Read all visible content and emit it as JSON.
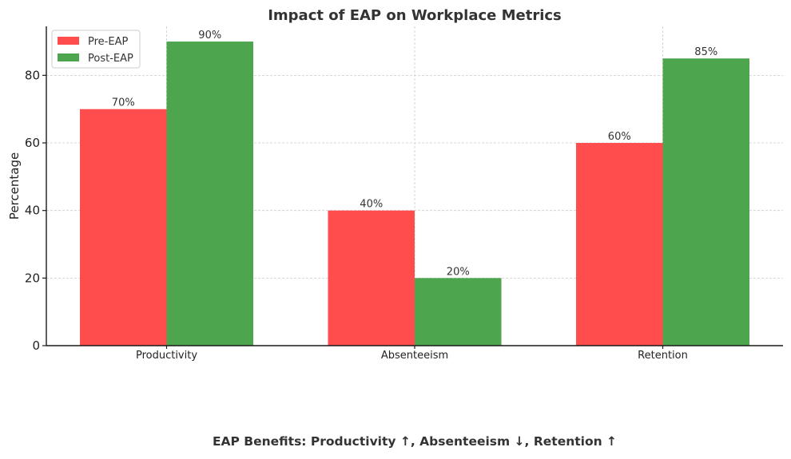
{
  "chart_data": {
    "type": "bar",
    "title": "Impact of EAP on Workplace Metrics",
    "xlabel": "",
    "ylabel": "Percentage",
    "footnote": "EAP Benefits: Productivity ↑, Absenteeism ↓, Retention ↑",
    "categories": [
      "Productivity",
      "Absenteeism",
      "Retention"
    ],
    "series": [
      {
        "name": "Pre-EAP",
        "values": [
          70,
          40,
          60
        ],
        "labels": [
          "70%",
          "40%",
          "60%"
        ],
        "color": "#ff4d4d"
      },
      {
        "name": "Post-EAP",
        "values": [
          90,
          20,
          85
        ],
        "labels": [
          "90%",
          "20%",
          "85%"
        ],
        "color": "#4da64d"
      }
    ],
    "ylim": [
      0,
      94.5
    ],
    "yticks": [
      0,
      20,
      40,
      60,
      80
    ],
    "ytick_labels": [
      "0",
      "20",
      "40",
      "60",
      "80"
    ],
    "grid": true,
    "legend_position": "top-left"
  }
}
